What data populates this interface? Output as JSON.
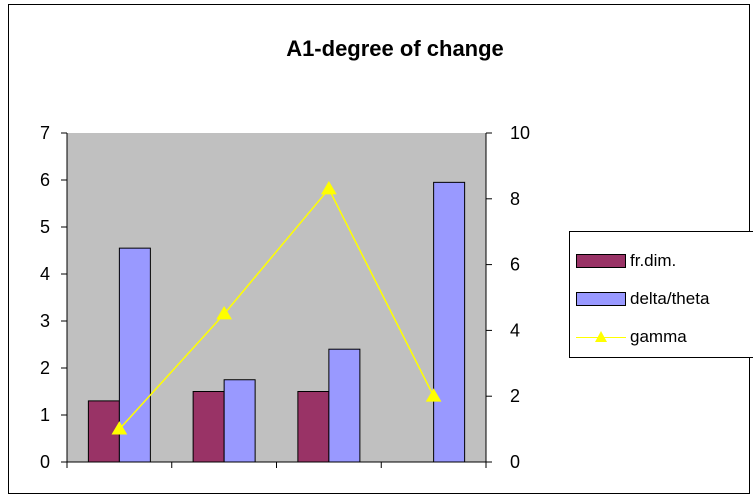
{
  "chart_data": {
    "type": "bar",
    "title": "A1-degree of change",
    "categories": [
      "",
      "",
      "",
      ""
    ],
    "series": [
      {
        "name": "fr.dim.",
        "kind": "bar",
        "axis": "left",
        "color": "#993366",
        "values": [
          1.3,
          1.5,
          1.5,
          0
        ]
      },
      {
        "name": "delta/theta",
        "kind": "bar",
        "axis": "left",
        "color": "#9999ff",
        "values": [
          4.55,
          1.75,
          2.4,
          5.95
        ]
      },
      {
        "name": "gamma",
        "kind": "line",
        "axis": "right",
        "color": "#ffff00",
        "marker": "triangle",
        "values": [
          1.0,
          4.5,
          8.3,
          2.0
        ]
      }
    ],
    "y_left": {
      "min": 0,
      "max": 7,
      "ticks": [
        "0",
        "1",
        "2",
        "3",
        "4",
        "5",
        "6",
        "7"
      ]
    },
    "y_right": {
      "min": 0,
      "max": 10,
      "ticks": [
        "0",
        "2",
        "4",
        "6",
        "8",
        "10"
      ]
    },
    "plot_background": "#c0c0c0",
    "grid": false,
    "legend_placement": "right"
  }
}
